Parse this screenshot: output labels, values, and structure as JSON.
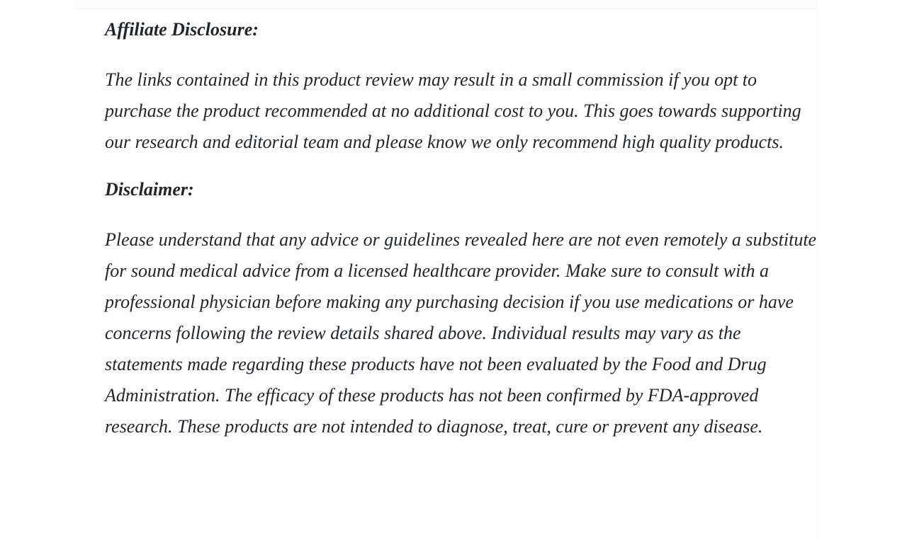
{
  "page": {
    "background_color": "#ffffff",
    "text_color": "#20262c",
    "divider_color": "#f5f5f5"
  },
  "article": {
    "sections": [
      {
        "heading": "Affiliate Disclosure:",
        "body": "The links contained in this product review may result in a small commission if you opt to purchase the product recommended at no additional cost to you. This goes towards supporting our research and editorial team and please know we only recommend high quality products."
      },
      {
        "heading": "Disclaimer:",
        "body": "Please understand that any advice or guidelines revealed here are not even remotely a substitute for sound medical advice from a licensed healthcare provider. Make sure to consult with a professional physician before making any purchasing decision if you use medications or have concerns following the review details shared above. Individual results may vary as the statements made regarding these products have not been evaluated by the Food and Drug Administration. The efficacy of these products has not been confirmed by FDA-approved research. These products are not intended to diagnose, treat, cure or prevent any disease."
      }
    ]
  }
}
